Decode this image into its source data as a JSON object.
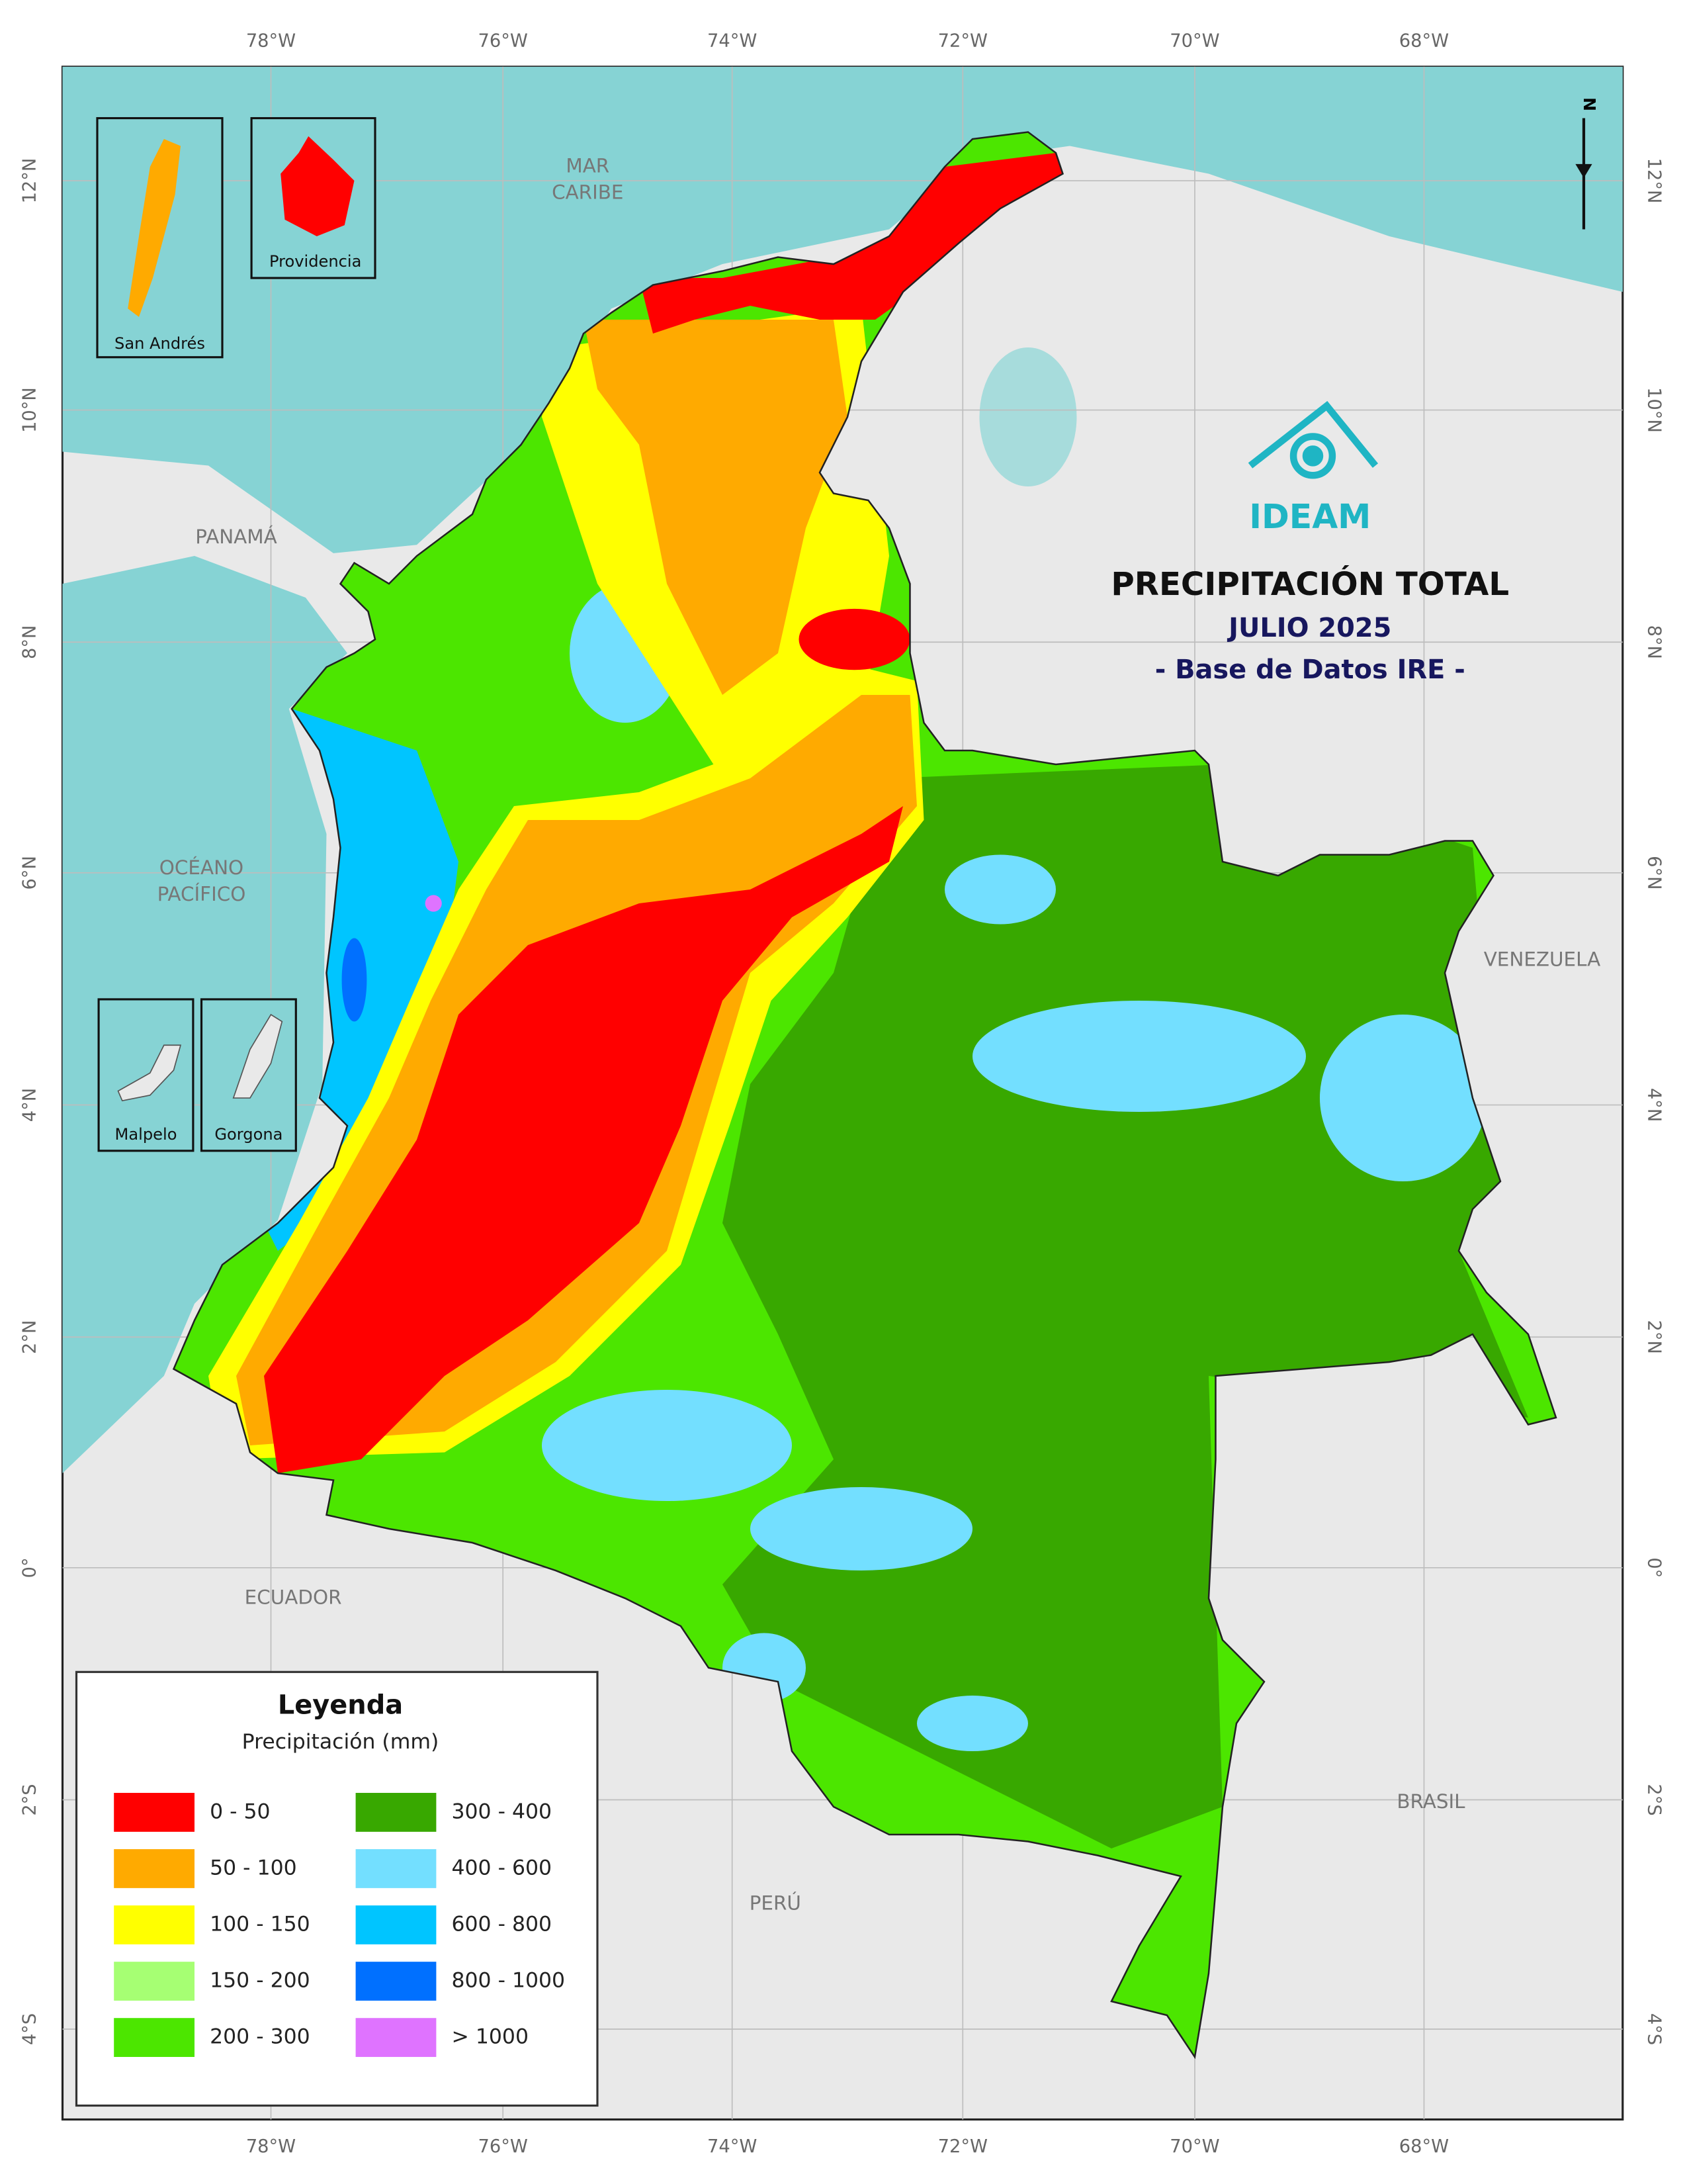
{
  "map": {
    "title": "PRECIPITACIÓN TOTAL",
    "subtitle": "JULIO 2025",
    "source": "- Base de Datos IRE -",
    "logo": "IDEAM",
    "north": "N",
    "lon_labels": [
      "78°W",
      "76°W",
      "74°W",
      "72°W",
      "70°W",
      "68°W"
    ],
    "lat_labels": [
      "12°N",
      "10°N",
      "8°N",
      "6°N",
      "4°N",
      "2°N",
      "0°",
      "2°S",
      "4°S"
    ],
    "places": [
      {
        "lines": [
          "MAR",
          "CARIBE"
        ]
      },
      {
        "lines": [
          "PANAMÁ"
        ]
      },
      {
        "lines": [
          "OCÉANO",
          "PACÍFICO"
        ]
      },
      {
        "lines": [
          "VENEZUELA"
        ]
      },
      {
        "lines": [
          "ECUADOR"
        ]
      },
      {
        "lines": [
          "BRASIL"
        ]
      },
      {
        "lines": [
          "PERÚ"
        ]
      }
    ],
    "insets": [
      "San Andrés",
      "Providencia",
      "Malpelo",
      "Gorgona"
    ],
    "legend": {
      "title": "Leyenda",
      "subtitle": "Precipitación (mm)",
      "items": [
        {
          "label": "0 - 50",
          "color": "#ff0000"
        },
        {
          "label": "50 - 100",
          "color": "#ffaa00"
        },
        {
          "label": "100 - 150",
          "color": "#ffff00"
        },
        {
          "label": "150 - 200",
          "color": "#a6ff73"
        },
        {
          "label": "200 - 300",
          "color": "#4ce600"
        },
        {
          "label": "300 - 400",
          "color": "#38a800"
        },
        {
          "label": "400 - 600",
          "color": "#73dfff"
        },
        {
          "label": "600 - 800",
          "color": "#00c5ff"
        },
        {
          "label": "800 - 1000",
          "color": "#0070ff"
        },
        {
          "label": "> 1000",
          "color": "#df73ff"
        }
      ]
    }
  }
}
